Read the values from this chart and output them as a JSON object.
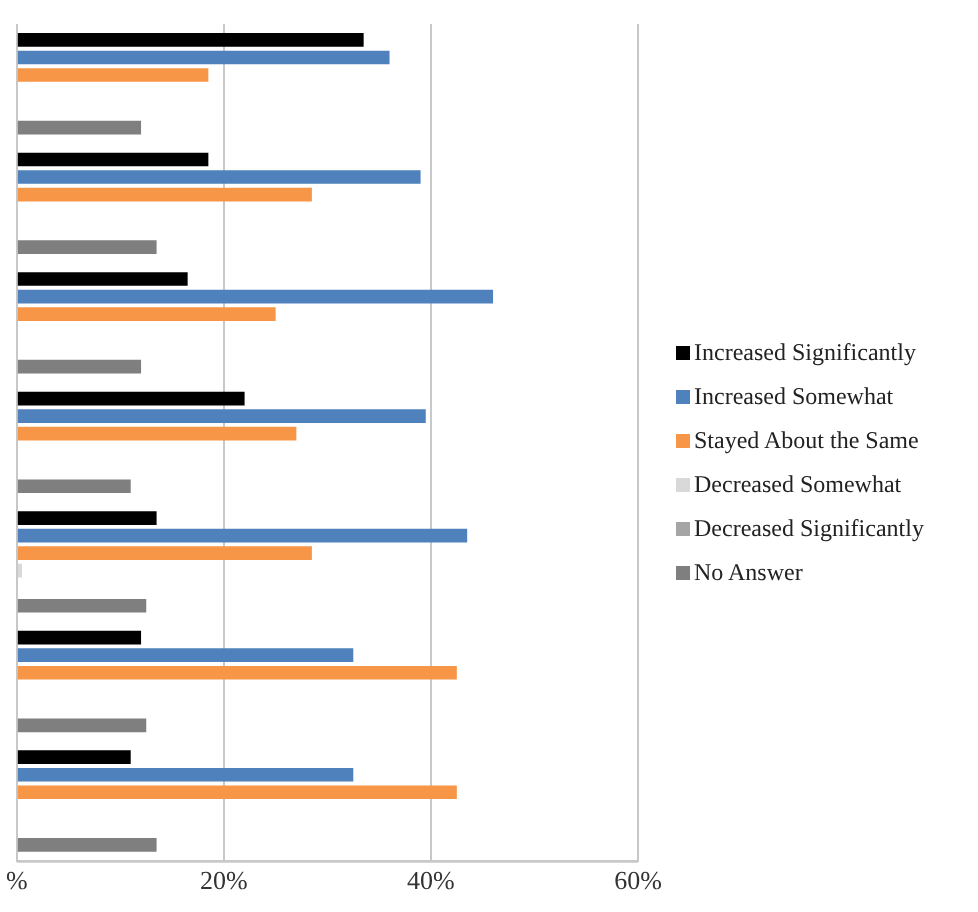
{
  "chart_data": {
    "type": "bar",
    "orientation": "horizontal",
    "categories": [
      null,
      null,
      null,
      null,
      null,
      null,
      null
    ],
    "series": [
      {
        "name": "Increased Significantly",
        "color": "#000000",
        "values": [
          33.5,
          18.5,
          16.5,
          22,
          13.5,
          12,
          11
        ]
      },
      {
        "name": "Increased Somewhat",
        "color": "#4f81bd",
        "values": [
          36,
          39,
          46,
          39.5,
          43.5,
          32.5,
          32.5
        ]
      },
      {
        "name": "Stayed About the Same",
        "color": "#f79646",
        "values": [
          18.5,
          28.5,
          25,
          27,
          28.5,
          42.5,
          42.5
        ]
      },
      {
        "name": "Decreased Somewhat",
        "color": "#d9d9d9",
        "values": [
          0,
          0,
          0,
          0,
          0.5,
          0,
          0
        ]
      },
      {
        "name": "Decreased Significantly",
        "color": "#a5a5a5",
        "values": [
          0,
          0,
          0,
          0,
          0,
          0,
          0
        ]
      },
      {
        "name": "No Answer",
        "color": "#7f7f7f",
        "values": [
          12,
          13.5,
          12,
          11,
          12.5,
          12.5,
          13.5
        ]
      }
    ],
    "xlim": [
      0,
      60
    ],
    "xticks": [
      {
        "value": 0,
        "label": "%"
      },
      {
        "value": 20,
        "label": "20%"
      },
      {
        "value": 40,
        "label": "40%"
      },
      {
        "value": 60,
        "label": "60%"
      }
    ],
    "grid": "x",
    "legend": "right",
    "tick_labels": "x"
  }
}
